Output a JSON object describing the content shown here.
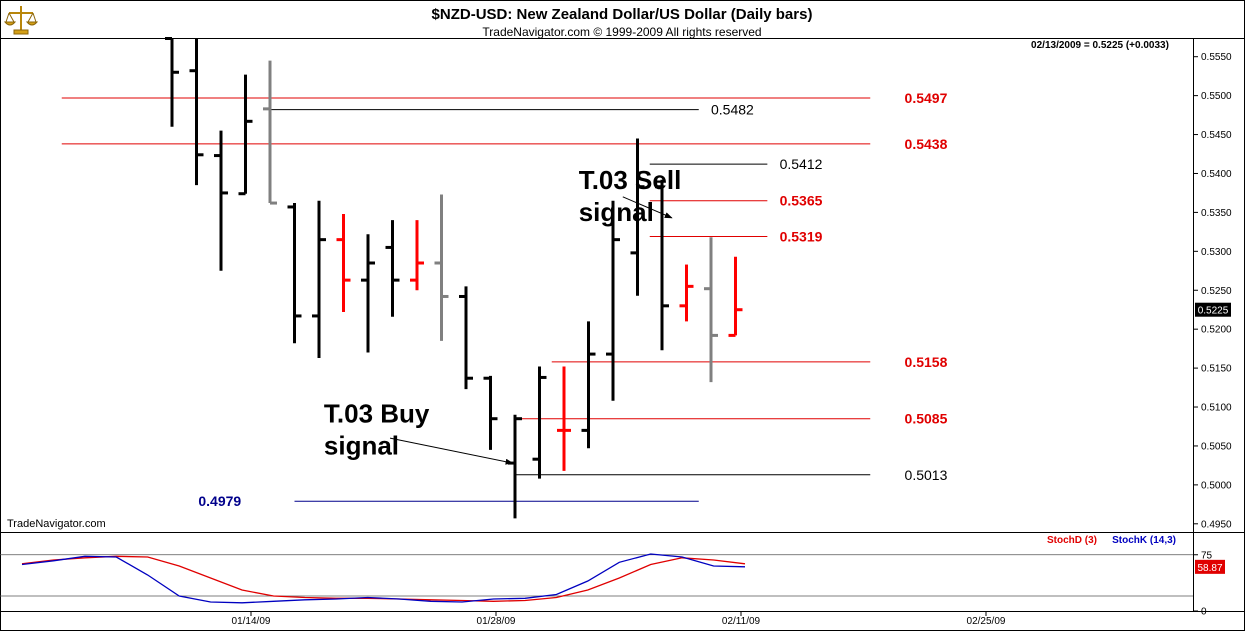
{
  "header": {
    "title": "$NZD-USD:  New Zealand Dollar/US Dollar  (Daily bars)",
    "copyright": "TradeNavigator.com © 1999-2009 All rights reserved",
    "quote": "02/13/2009 = 0.5225 (+0.0033)",
    "watermark": "TradeNavigator.com"
  },
  "colors": {
    "up": "#000000",
    "down": "#ff0000",
    "neutral": "#808080",
    "level_red": "#e00000",
    "level_black": "#000000",
    "level_blue": "#00008b",
    "stoch_d": "#e00000",
    "stoch_k": "#0000c0",
    "frame": "#000000",
    "logo": "#d4a017"
  },
  "chart_data": [
    {
      "type": "ohlc",
      "y_ticks": [
        "0.5550",
        "0.5500",
        "0.5450",
        "0.5400",
        "0.5350",
        "0.5300",
        "0.5250",
        "0.5200",
        "0.5150",
        "0.5100",
        "0.5050",
        "0.5000",
        "0.4950"
      ],
      "ylim": [
        0.494,
        0.5575
      ],
      "x_ticks": [
        {
          "label": "01/14/09",
          "day": 2
        },
        {
          "label": "01/28/09",
          "day": 12
        },
        {
          "label": "02/11/09",
          "day": 22
        },
        {
          "label": "02/25/09",
          "day": 32
        }
      ],
      "last_price_label": "0.5225",
      "bars": [
        {
          "open": 0.5575,
          "high": 0.5575,
          "low": 0.546,
          "close": 0.553,
          "color": "black"
        },
        {
          "open": 0.5532,
          "high": 0.5575,
          "low": 0.5385,
          "close": 0.5424,
          "color": "black"
        },
        {
          "open": 0.5423,
          "high": 0.5455,
          "low": 0.5275,
          "close": 0.5375,
          "color": "black"
        },
        {
          "open": 0.5374,
          "high": 0.5527,
          "low": 0.5374,
          "close": 0.5467,
          "color": "black"
        },
        {
          "open": 0.5483,
          "high": 0.5545,
          "low": 0.5362,
          "close": 0.5362,
          "color": "gray"
        },
        {
          "open": 0.5357,
          "high": 0.5362,
          "low": 0.5182,
          "close": 0.5217,
          "color": "black"
        },
        {
          "open": 0.5217,
          "high": 0.5365,
          "low": 0.5163,
          "close": 0.5315,
          "color": "black"
        },
        {
          "open": 0.5315,
          "high": 0.5348,
          "low": 0.5222,
          "close": 0.5263,
          "color": "red"
        },
        {
          "open": 0.5263,
          "high": 0.5322,
          "low": 0.517,
          "close": 0.5285,
          "color": "black"
        },
        {
          "open": 0.5305,
          "high": 0.534,
          "low": 0.5216,
          "close": 0.5263,
          "color": "black"
        },
        {
          "open": 0.5263,
          "high": 0.534,
          "low": 0.525,
          "close": 0.5285,
          "color": "red"
        },
        {
          "open": 0.5285,
          "high": 0.5373,
          "low": 0.5185,
          "close": 0.5242,
          "color": "gray"
        },
        {
          "open": 0.5242,
          "high": 0.5255,
          "low": 0.5123,
          "close": 0.5137,
          "color": "black"
        },
        {
          "open": 0.5137,
          "high": 0.514,
          "low": 0.5045,
          "close": 0.5085,
          "color": "black"
        },
        {
          "open": 0.5028,
          "high": 0.509,
          "low": 0.4957,
          "close": 0.5085,
          "color": "black"
        },
        {
          "open": 0.5033,
          "high": 0.5152,
          "low": 0.5008,
          "close": 0.5138,
          "color": "black"
        },
        {
          "open": 0.507,
          "high": 0.5152,
          "low": 0.5018,
          "close": 0.507,
          "color": "red"
        },
        {
          "open": 0.507,
          "high": 0.521,
          "low": 0.5047,
          "close": 0.5168,
          "color": "black"
        },
        {
          "open": 0.5168,
          "high": 0.5365,
          "low": 0.5108,
          "close": 0.5315,
          "color": "black"
        },
        {
          "open": 0.5298,
          "high": 0.5445,
          "low": 0.5243,
          "close": 0.5383,
          "color": "black"
        },
        {
          "open": 0.5383,
          "high": 0.5392,
          "low": 0.5173,
          "close": 0.523,
          "color": "black"
        },
        {
          "open": 0.523,
          "high": 0.5283,
          "low": 0.521,
          "close": 0.5255,
          "color": "red"
        },
        {
          "open": 0.5252,
          "high": 0.5318,
          "low": 0.5132,
          "close": 0.5192,
          "color": "gray"
        },
        {
          "open": 0.5192,
          "high": 0.5293,
          "low": 0.5192,
          "close": 0.5225,
          "color": "red"
        }
      ],
      "levels": [
        {
          "value": 0.5497,
          "label": "0.5497",
          "color": "red",
          "from_day": -4.5,
          "to_day": 28.5,
          "label_day": 29.9
        },
        {
          "value": 0.5482,
          "label": "0.5482",
          "color": "black",
          "from_day": 4,
          "to_day": 21.5,
          "label_day": 22
        },
        {
          "value": 0.5438,
          "label": "0.5438",
          "color": "red",
          "from_day": -4.5,
          "to_day": 28.5,
          "label_day": 29.9
        },
        {
          "value": 0.5412,
          "label": "0.5412",
          "color": "black",
          "from_day": 19.5,
          "to_day": 24.3,
          "label_day": 24.8
        },
        {
          "value": 0.5365,
          "label": "0.5365",
          "color": "red",
          "from_day": 19.5,
          "to_day": 24.3,
          "label_day": 24.8
        },
        {
          "value": 0.5319,
          "label": "0.5319",
          "color": "red",
          "from_day": 19.5,
          "to_day": 24.3,
          "label_day": 24.8
        },
        {
          "value": 0.5158,
          "label": "0.5158",
          "color": "red",
          "from_day": 15.5,
          "to_day": 28.5,
          "label_day": 29.9
        },
        {
          "value": 0.5085,
          "label": "0.5085",
          "color": "red",
          "from_day": 14,
          "to_day": 28.5,
          "label_day": 29.9
        },
        {
          "value": 0.5013,
          "label": "0.5013",
          "color": "black",
          "from_day": 14,
          "to_day": 28.5,
          "label_day": 29.9
        },
        {
          "value": 0.4979,
          "label": "0.4979",
          "color": "blue",
          "from_day": 5,
          "to_day": 21.5,
          "label_day": 1.95
        }
      ],
      "annotations": [
        {
          "lines": [
            "T.03 Sell",
            "signal"
          ],
          "label_day": 16.6,
          "label_value": 0.538,
          "arrow_from": {
            "day": 18.4,
            "value": 0.537
          },
          "arrow_to": {
            "day": 20.4,
            "value": 0.5343
          }
        },
        {
          "lines": [
            "T.03 Buy",
            "signal"
          ],
          "label_day": 6.2,
          "label_value": 0.508,
          "arrow_from": {
            "day": 8.9,
            "value": 0.506
          },
          "arrow_to": {
            "day": 13.9,
            "value": 0.5028
          }
        }
      ]
    },
    {
      "type": "line",
      "indicator": "stochastic",
      "legend": [
        {
          "name": "StochD (3)",
          "color": "red"
        },
        {
          "name": "StochK (14,3)",
          "color": "blue"
        }
      ],
      "ylim": [
        0,
        100
      ],
      "y_ticks": [
        "75",
        "0"
      ],
      "reference_lines": [
        75,
        20
      ],
      "last_value_label": "58.87",
      "series": [
        {
          "name": "StochD (3)",
          "values": [
            63,
            68,
            71,
            73,
            72,
            60,
            44,
            28,
            20,
            18,
            17,
            17,
            16,
            15,
            14,
            13,
            14,
            18,
            28,
            44,
            62,
            71,
            68,
            63
          ]
        },
        {
          "name": "StochK (14,3)",
          "values": [
            62,
            67,
            73,
            72,
            48,
            20,
            12,
            11,
            13,
            15,
            16,
            18,
            16,
            13,
            12,
            16,
            17,
            22,
            40,
            65,
            76,
            72,
            60,
            59
          ]
        }
      ]
    }
  ]
}
